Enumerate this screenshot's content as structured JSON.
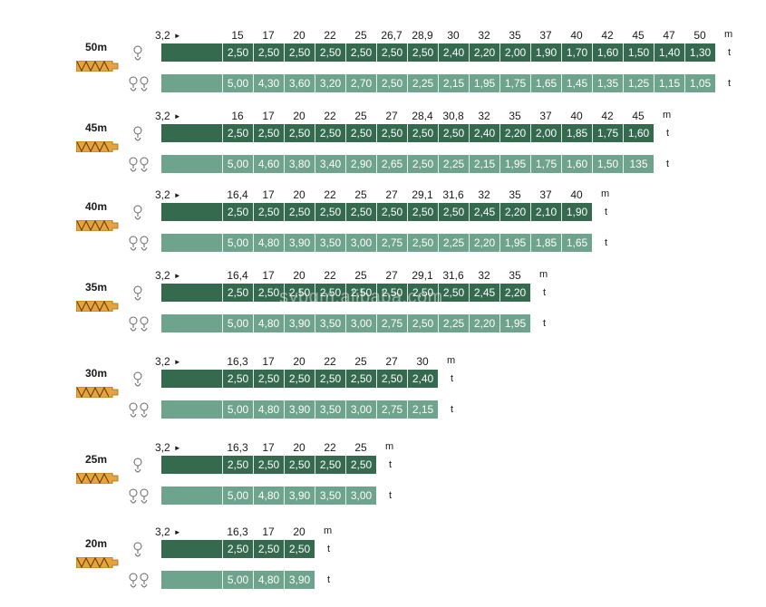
{
  "start_distance": "3,2",
  "distance_unit": "m",
  "load_unit": "t",
  "watermark": "sybqm.alibaba.com",
  "colors": {
    "dark_bar": "#356a4f",
    "light_bar": "#6ea38d",
    "jib_icon": "#e8a33a"
  },
  "icons": {
    "jib": "jib-section-icon",
    "single_hook": "single-fall-hook-icon",
    "double_hook": "double-fall-hook-icon"
  },
  "sections": [
    {
      "label": "50m",
      "distances": [
        "15",
        "17",
        "20",
        "22",
        "25",
        "26,7",
        "28,9",
        "30",
        "32",
        "35",
        "37",
        "40",
        "42",
        "45",
        "47",
        "50"
      ],
      "loads_single": [
        "2,50",
        "2,50",
        "2,50",
        "2,50",
        "2,50",
        "2,50",
        "2,50",
        "2,40",
        "2,20",
        "2,00",
        "1,90",
        "1,70",
        "1,60",
        "1,50",
        "1,40",
        "1,30"
      ],
      "loads_double": [
        "5,00",
        "4,30",
        "3,60",
        "3,20",
        "2,70",
        "2,50",
        "2,25",
        "2,15",
        "1,95",
        "1,75",
        "1,65",
        "1,45",
        "1,35",
        "1,25",
        "1,15",
        "1,05"
      ]
    },
    {
      "label": "45m",
      "distances": [
        "16",
        "17",
        "20",
        "22",
        "25",
        "27",
        "28,4",
        "30,8",
        "32",
        "35",
        "37",
        "40",
        "42",
        "45"
      ],
      "loads_single": [
        "2,50",
        "2,50",
        "2,50",
        "2,50",
        "2,50",
        "2,50",
        "2,50",
        "2,50",
        "2,40",
        "2,20",
        "2,00",
        "1,85",
        "1,75",
        "1,60"
      ],
      "loads_double": [
        "5,00",
        "4,60",
        "3,80",
        "3,40",
        "2,90",
        "2,65",
        "2,50",
        "2,25",
        "2,15",
        "1,95",
        "1,75",
        "1,60",
        "1,50",
        "135"
      ]
    },
    {
      "label": "40m",
      "distances": [
        "16,4",
        "17",
        "20",
        "22",
        "25",
        "27",
        "29,1",
        "31,6",
        "32",
        "35",
        "37",
        "40"
      ],
      "loads_single": [
        "2,50",
        "2,50",
        "2,50",
        "2,50",
        "2,50",
        "2,50",
        "2,50",
        "2,50",
        "2,45",
        "2,20",
        "2,10",
        "1,90"
      ],
      "loads_double": [
        "5,00",
        "4,80",
        "3,90",
        "3,50",
        "3,00",
        "2,75",
        "2,50",
        "2,25",
        "2,20",
        "1,95",
        "1,85",
        "1,65"
      ]
    },
    {
      "label": "35m",
      "distances": [
        "16,4",
        "17",
        "20",
        "22",
        "25",
        "27",
        "29,1",
        "31,6",
        "32",
        "35"
      ],
      "loads_single": [
        "2,50",
        "2,50",
        "2,50",
        "2,50",
        "2,50",
        "2,50",
        "2,50",
        "2,50",
        "2,45",
        "2,20"
      ],
      "loads_double": [
        "5,00",
        "4,80",
        "3,90",
        "3,50",
        "3,00",
        "2,75",
        "2,50",
        "2,25",
        "2,20",
        "1,95"
      ]
    },
    {
      "label": "30m",
      "distances": [
        "16,3",
        "17",
        "20",
        "22",
        "25",
        "27",
        "30"
      ],
      "loads_single": [
        "2,50",
        "2,50",
        "2,50",
        "2,50",
        "2,50",
        "2,50",
        "2,40"
      ],
      "loads_double": [
        "5,00",
        "4,80",
        "3,90",
        "3,50",
        "3,00",
        "2,75",
        "2,15"
      ]
    },
    {
      "label": "25m",
      "distances": [
        "16,3",
        "17",
        "20",
        "22",
        "25"
      ],
      "loads_single": [
        "2,50",
        "2,50",
        "2,50",
        "2,50",
        "2,50"
      ],
      "loads_double": [
        "5,00",
        "4,80",
        "3,90",
        "3,50",
        "3,00"
      ]
    },
    {
      "label": "20m",
      "distances": [
        "16,3",
        "17",
        "20"
      ],
      "loads_single": [
        "2,50",
        "2,50",
        "2,50"
      ],
      "loads_double": [
        "5,00",
        "4,80",
        "3,90"
      ]
    }
  ]
}
